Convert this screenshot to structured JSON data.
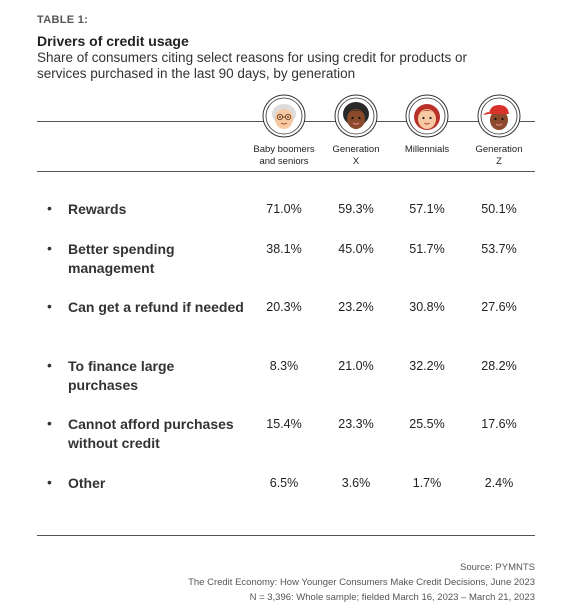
{
  "header": {
    "table_label": "TABLE 1:",
    "title": "Drivers of credit usage",
    "subtitle": "Share of consumers citing select reasons for using credit for products or services purchased in the last 90 days, by generation"
  },
  "chart_data": {
    "type": "table",
    "columns": [
      {
        "label": "Baby boomers\nand seniors",
        "icon": "baby-boomer-avatar-icon"
      },
      {
        "label": "Generation\nX",
        "icon": "generation-x-avatar-icon"
      },
      {
        "label": "Millennials",
        "icon": "millennial-avatar-icon"
      },
      {
        "label": "Generation\nZ",
        "icon": "generation-z-avatar-icon"
      }
    ],
    "rows": [
      {
        "label": "Rewards",
        "values": [
          "71.0%",
          "59.3%",
          "57.1%",
          "50.1%"
        ]
      },
      {
        "label": "Better spending management",
        "values": [
          "38.1%",
          "45.0%",
          "51.7%",
          "53.7%"
        ]
      },
      {
        "label": "Can get a refund if needed",
        "values": [
          "20.3%",
          "23.2%",
          "30.8%",
          "27.6%"
        ]
      },
      {
        "label": "To finance large purchases",
        "values": [
          "8.3%",
          "21.0%",
          "32.2%",
          "28.2%"
        ]
      },
      {
        "label": "Cannot afford purchases without credit",
        "values": [
          "15.4%",
          "23.3%",
          "25.5%",
          "17.6%"
        ]
      },
      {
        "label": "Other",
        "values": [
          "6.5%",
          "3.6%",
          "1.7%",
          "2.4%"
        ]
      }
    ]
  },
  "footer": {
    "source": "Source: PYMNTS",
    "report": "The Credit Economy: How Younger Consumers Make Credit Decisions, June 2023",
    "sample": "N = 3,396: Whole sample; fielded March 16, 2023 – March 21, 2023"
  },
  "colors": {
    "rule": "#555555",
    "text": "#333333",
    "avatar_outline": "#333333",
    "boomer_hair": "#dcdcdc",
    "skin_light": "#f6c9a3",
    "skin_dark": "#8a4a2b",
    "genx_hair": "#2a2a2a",
    "millennial_hair": "#b8322a",
    "genz_cap": "#d9322b"
  }
}
